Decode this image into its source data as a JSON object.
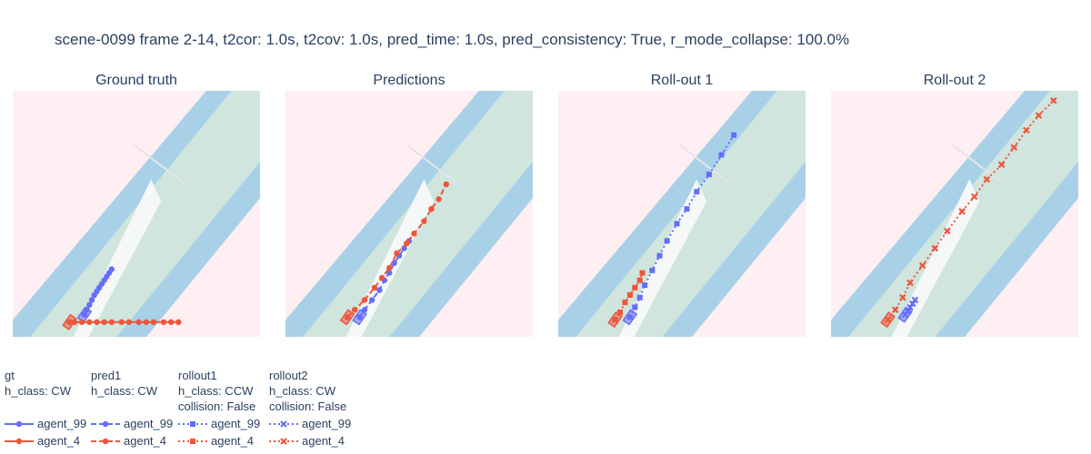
{
  "title": "scene-0099 frame 2-14, t2cor: 1.0s, t2cov: 1.0s, pred_time: 1.0s, pred_consistency: True, r_mode_collapse: 100.0%",
  "colors": {
    "agent_99": "#636efa",
    "agent_4": "#ef553b",
    "background": "#ffeef2",
    "drivable": "#cfe5de",
    "lane_edge": "#a8d1e8",
    "crosswalk": "#e4e4ea",
    "divider": "#f6f8f8"
  },
  "legend": [
    {
      "header": [
        "gt",
        "h_class: CW"
      ],
      "dash": "solid",
      "marker": "circle",
      "items": [
        "agent_99",
        "agent_4"
      ]
    },
    {
      "header": [
        "pred1",
        "h_class: CW"
      ],
      "dash": "dash",
      "marker": "circle",
      "items": [
        "agent_99",
        "agent_4"
      ]
    },
    {
      "header": [
        "rollout1",
        "h_class: CCW",
        "collision: False"
      ],
      "dash": "dot",
      "marker": "square",
      "items": [
        "agent_99",
        "agent_4"
      ]
    },
    {
      "header": [
        "rollout2",
        "h_class: CW",
        "collision: False"
      ],
      "dash": "dot",
      "marker": "x",
      "items": [
        "agent_99",
        "agent_4"
      ]
    }
  ],
  "chart_data": [
    {
      "type": "scatter",
      "title": "Ground truth",
      "xlim": [
        0,
        100
      ],
      "ylim": [
        0,
        100
      ],
      "grid": false,
      "series": [
        {
          "name": "agent_99",
          "mode": "lines+markers",
          "dash": "solid",
          "marker": "circle",
          "x": [
            29,
            30,
            31,
            32,
            33,
            34,
            35,
            36,
            37,
            38,
            39,
            40
          ],
          "y": [
            9,
            11,
            13,
            15,
            17,
            18.5,
            20,
            21.5,
            23,
            24.5,
            26,
            27.5
          ]
        },
        {
          "name": "agent_4",
          "mode": "lines+markers",
          "dash": "solid",
          "marker": "circle",
          "x": [
            23,
            25,
            28,
            31,
            34,
            37,
            40,
            44,
            47,
            51,
            54,
            57,
            61,
            64,
            67
          ],
          "y": 6
        }
      ]
    },
    {
      "type": "scatter",
      "title": "Predictions",
      "xlim": [
        0,
        100
      ],
      "ylim": [
        0,
        100
      ],
      "grid": false,
      "series": [
        {
          "name": "agent_99",
          "mode": "lines+markers",
          "dash": "dash",
          "marker": "circle",
          "x": [
            30,
            32,
            35,
            38,
            40,
            42,
            44,
            46,
            48,
            50
          ],
          "y": [
            8,
            11,
            15,
            19,
            23,
            26,
            30,
            33,
            36,
            39
          ]
        },
        {
          "name": "agent_4",
          "mode": "lines+markers",
          "dash": "dash",
          "marker": "circle",
          "x": [
            25,
            28,
            32,
            36,
            39,
            42,
            45,
            49,
            52,
            56,
            59,
            62,
            65
          ],
          "y": [
            8,
            11,
            15,
            20,
            24,
            28,
            34,
            38,
            42,
            47,
            52,
            56,
            62
          ]
        }
      ]
    },
    {
      "type": "scatter",
      "title": "Roll-out 1",
      "xlim": [
        0,
        100
      ],
      "ylim": [
        0,
        100
      ],
      "grid": false,
      "series": [
        {
          "name": "agent_99",
          "mode": "lines+markers",
          "dash": "dot",
          "marker": "square",
          "x": [
            29,
            31,
            33,
            35,
            38,
            41,
            44,
            48,
            52,
            56,
            61,
            66,
            71
          ],
          "y": [
            8,
            12,
            16,
            21,
            27,
            33,
            39,
            46,
            52,
            59,
            66,
            74,
            82
          ]
        },
        {
          "name": "agent_4",
          "mode": "lines+markers",
          "dash": "dot",
          "marker": "square",
          "x": [
            23,
            25,
            27,
            29,
            31,
            33,
            34
          ],
          "y": [
            7,
            10,
            14,
            17,
            20,
            23,
            26
          ]
        }
      ]
    },
    {
      "type": "scatter",
      "title": "Roll-out 2",
      "xlim": [
        0,
        100
      ],
      "ylim": [
        0,
        100
      ],
      "grid": false,
      "series": [
        {
          "name": "agent_99",
          "mode": "lines+markers",
          "dash": "dot",
          "marker": "x",
          "x": [
            30,
            31,
            32,
            33,
            34
          ],
          "y": [
            9,
            10.5,
            12,
            13.5,
            15
          ]
        },
        {
          "name": "agent_4",
          "mode": "lines+markers",
          "dash": "dot",
          "marker": "x",
          "x": [
            23,
            26,
            29,
            32,
            37,
            42,
            47,
            53,
            58,
            63,
            69,
            74,
            79,
            84,
            90
          ],
          "y": [
            7,
            11,
            16,
            22,
            29,
            36,
            43,
            51,
            57,
            64,
            70,
            77,
            84,
            90,
            96
          ]
        }
      ]
    }
  ]
}
